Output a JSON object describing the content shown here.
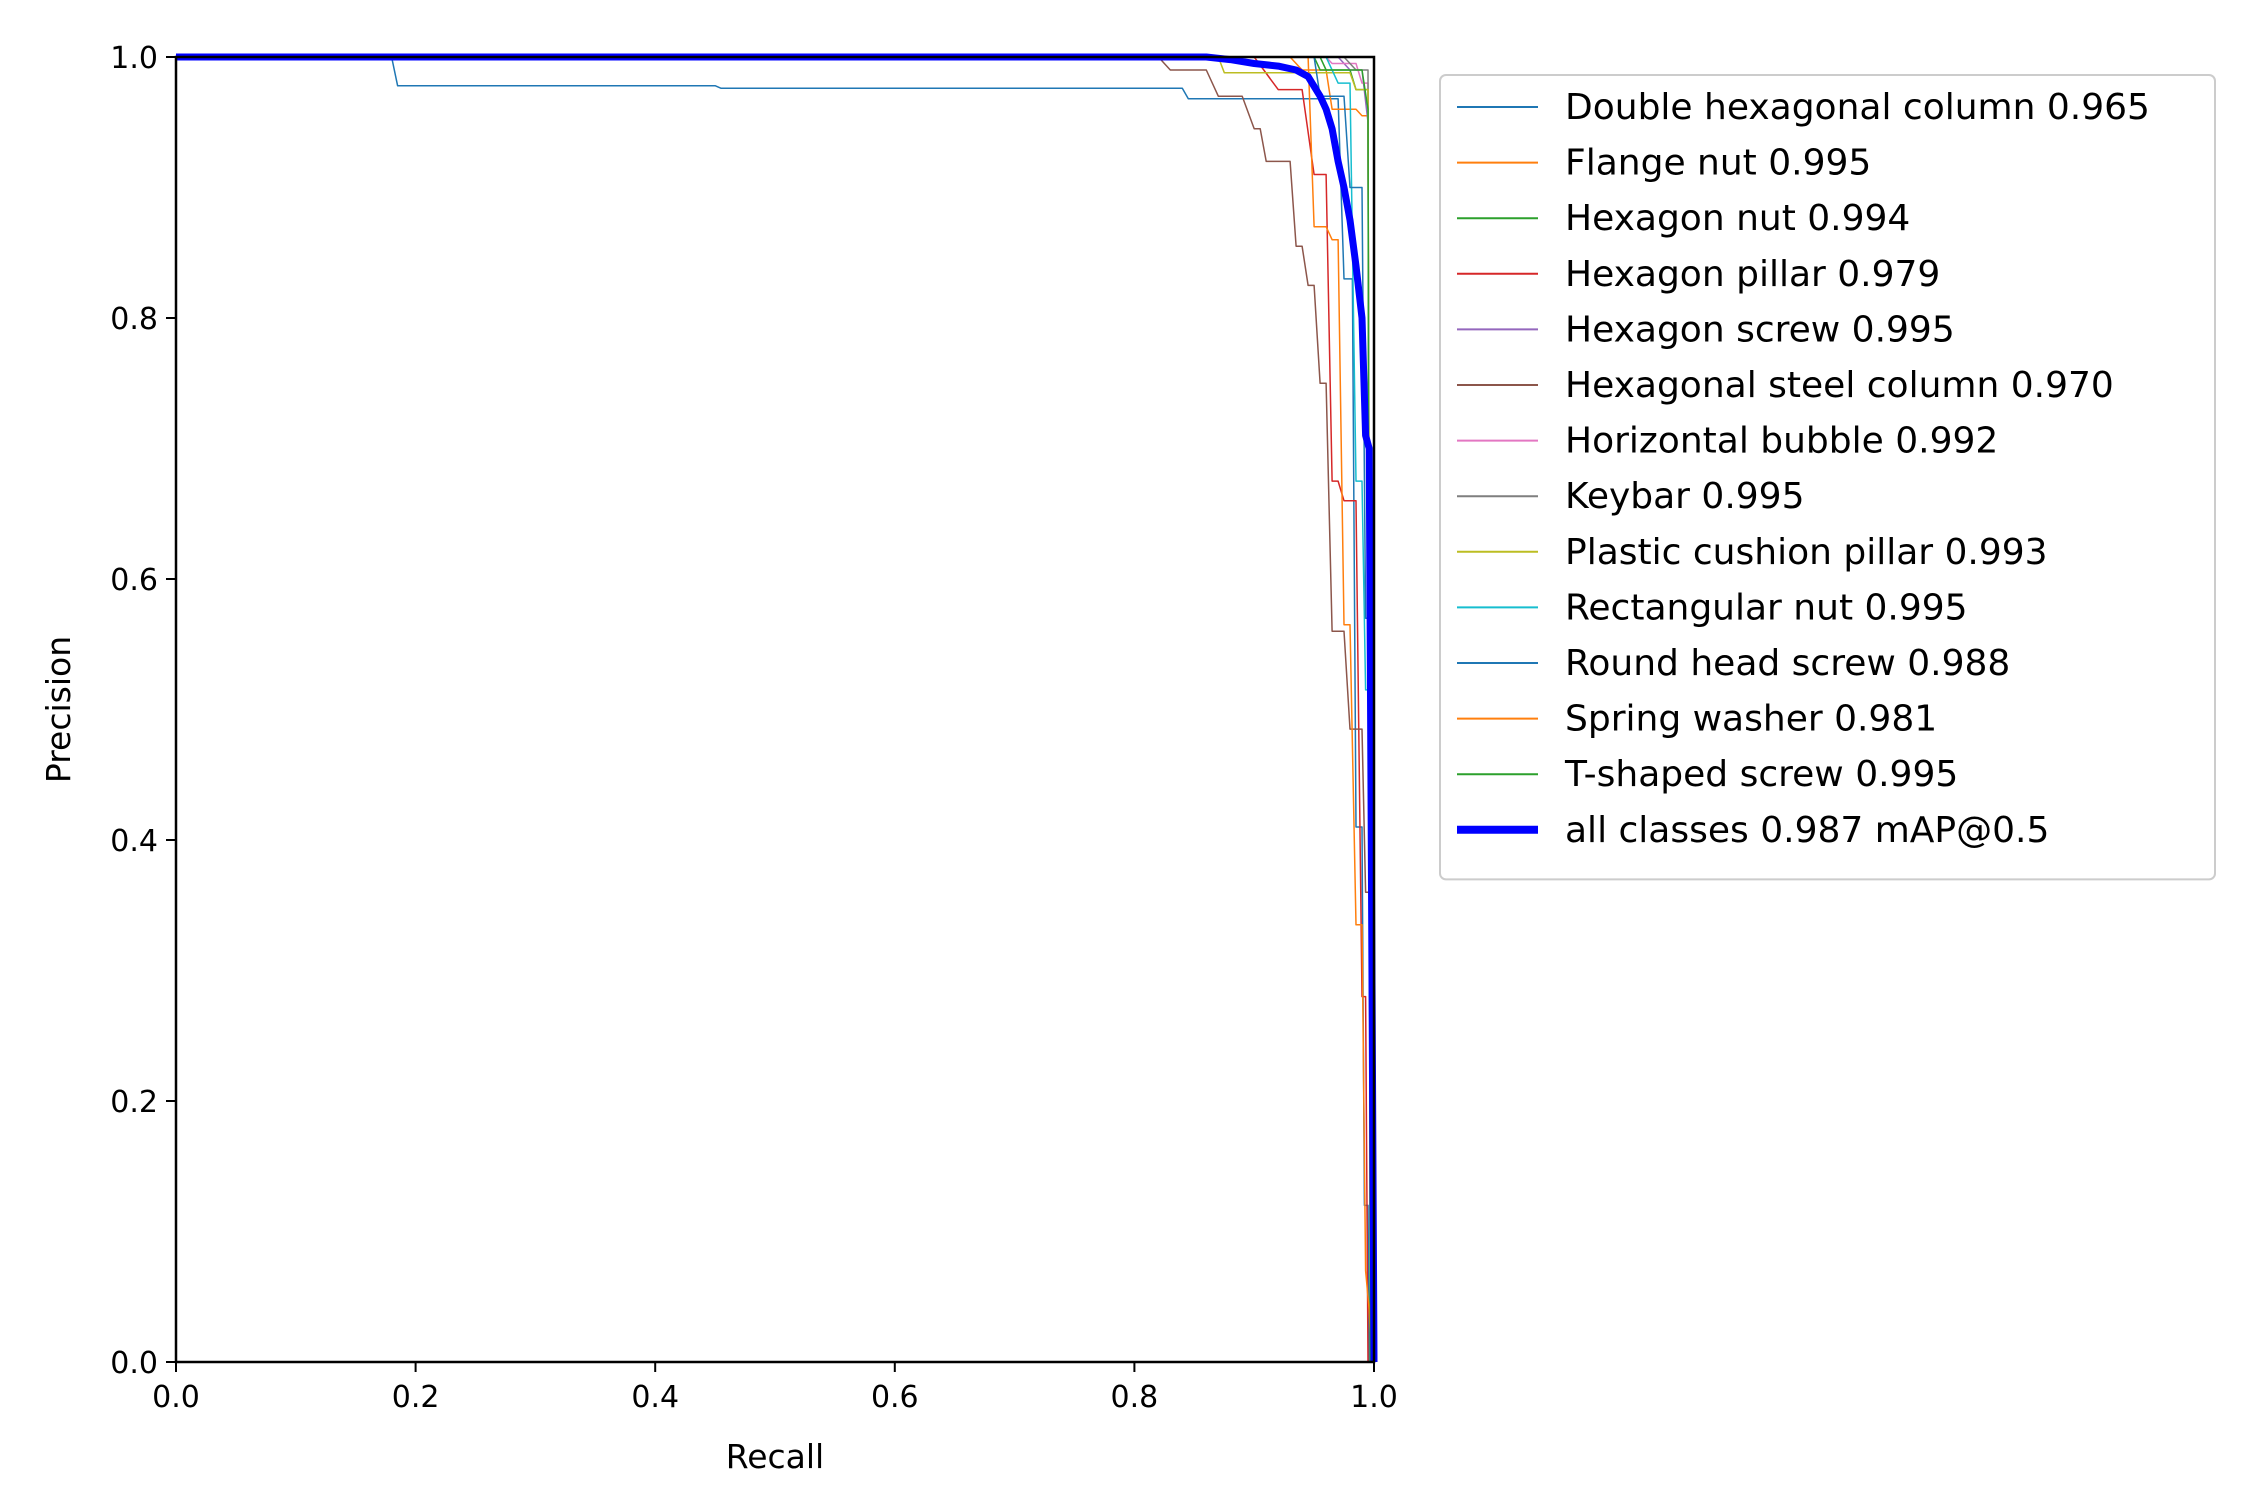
{
  "chart_data": {
    "type": "line",
    "title": "",
    "xlabel": "Recall",
    "ylabel": "Precision",
    "xlim": [
      0,
      1
    ],
    "ylim": [
      0,
      1
    ],
    "xticks": [
      "0.0",
      "0.2",
      "0.4",
      "0.6",
      "0.8",
      "1.0"
    ],
    "yticks": [
      "0.0",
      "0.2",
      "0.4",
      "0.6",
      "0.8",
      "1.0"
    ],
    "grid": false,
    "legend_position": "outside-right-top",
    "series": [
      {
        "name": "Double hexagonal column 0.965",
        "color": "#1f77b4",
        "width": 1.5,
        "points": [
          [
            0,
            1
          ],
          [
            0.18,
            1
          ],
          [
            0.185,
            0.978
          ],
          [
            0.45,
            0.978
          ],
          [
            0.455,
            0.976
          ],
          [
            0.84,
            0.976
          ],
          [
            0.845,
            0.968
          ],
          [
            0.97,
            0.968
          ],
          [
            0.975,
            0.83
          ],
          [
            0.982,
            0.83
          ],
          [
            0.985,
            0.41
          ],
          [
            0.99,
            0.41
          ],
          [
            0.992,
            0.12
          ],
          [
            0.995,
            0.12
          ],
          [
            0.996,
            0
          ]
        ]
      },
      {
        "name": "Flange nut 0.995",
        "color": "#ff7f0e",
        "width": 1.5,
        "points": [
          [
            0,
            1
          ],
          [
            0.93,
            1
          ],
          [
            0.94,
            0.99
          ],
          [
            0.96,
            0.99
          ],
          [
            0.965,
            0.96
          ],
          [
            0.985,
            0.96
          ],
          [
            0.99,
            0.955
          ],
          [
            0.995,
            0.955
          ],
          [
            0.998,
            0
          ]
        ]
      },
      {
        "name": "Hexagon nut 0.994",
        "color": "#2ca02c",
        "width": 1.5,
        "points": [
          [
            0,
            1
          ],
          [
            0.95,
            1
          ],
          [
            0.955,
            0.99
          ],
          [
            0.98,
            0.99
          ],
          [
            0.985,
            0.975
          ],
          [
            0.995,
            0.975
          ],
          [
            0.997,
            0
          ]
        ]
      },
      {
        "name": "Hexagon pillar 0.979",
        "color": "#d62728",
        "width": 1.5,
        "points": [
          [
            0,
            1
          ],
          [
            0.9,
            1
          ],
          [
            0.92,
            0.975
          ],
          [
            0.94,
            0.975
          ],
          [
            0.95,
            0.91
          ],
          [
            0.96,
            0.91
          ],
          [
            0.965,
            0.675
          ],
          [
            0.97,
            0.675
          ],
          [
            0.975,
            0.66
          ],
          [
            0.985,
            0.66
          ],
          [
            0.99,
            0.28
          ],
          [
            0.993,
            0.28
          ],
          [
            0.995,
            0
          ]
        ]
      },
      {
        "name": "Hexagon screw 0.995",
        "color": "#9467bd",
        "width": 1.5,
        "points": [
          [
            0,
            1
          ],
          [
            0.97,
            1
          ],
          [
            0.98,
            0.99
          ],
          [
            0.99,
            0.99
          ],
          [
            0.995,
            0.95
          ],
          [
            0.997,
            0
          ]
        ]
      },
      {
        "name": "Hexagonal steel column 0.970",
        "color": "#8c564b",
        "width": 1.5,
        "points": [
          [
            0,
            1
          ],
          [
            0.82,
            1
          ],
          [
            0.83,
            0.99
          ],
          [
            0.86,
            0.99
          ],
          [
            0.87,
            0.97
          ],
          [
            0.89,
            0.97
          ],
          [
            0.9,
            0.945
          ],
          [
            0.905,
            0.945
          ],
          [
            0.91,
            0.92
          ],
          [
            0.93,
            0.92
          ],
          [
            0.935,
            0.855
          ],
          [
            0.94,
            0.855
          ],
          [
            0.945,
            0.825
          ],
          [
            0.95,
            0.825
          ],
          [
            0.955,
            0.75
          ],
          [
            0.96,
            0.75
          ],
          [
            0.965,
            0.56
          ],
          [
            0.975,
            0.56
          ],
          [
            0.98,
            0.485
          ],
          [
            0.99,
            0.485
          ],
          [
            0.993,
            0.36
          ],
          [
            0.996,
            0.36
          ],
          [
            0.998,
            0
          ]
        ]
      },
      {
        "name": "Horizontal bubble 0.992",
        "color": "#e377c2",
        "width": 1.5,
        "points": [
          [
            0,
            1
          ],
          [
            0.96,
            1
          ],
          [
            0.965,
            0.995
          ],
          [
            0.985,
            0.995
          ],
          [
            0.99,
            0.98
          ],
          [
            0.995,
            0.98
          ],
          [
            0.997,
            0
          ]
        ]
      },
      {
        "name": "Keybar 0.995",
        "color": "#7f7f7f",
        "width": 1.5,
        "points": [
          [
            0,
            1
          ],
          [
            0.975,
            1
          ],
          [
            0.985,
            0.99
          ],
          [
            0.995,
            0.99
          ],
          [
            0.997,
            0
          ]
        ]
      },
      {
        "name": "Plastic cushion pillar 0.993",
        "color": "#bcbd22",
        "width": 1.5,
        "points": [
          [
            0,
            1
          ],
          [
            0.87,
            1
          ],
          [
            0.875,
            0.988
          ],
          [
            0.98,
            0.988
          ],
          [
            0.985,
            0.975
          ],
          [
            0.995,
            0.975
          ],
          [
            0.997,
            0
          ]
        ]
      },
      {
        "name": "Rectangular nut 0.995",
        "color": "#17becf",
        "width": 1.5,
        "points": [
          [
            0,
            1
          ],
          [
            0.96,
            1
          ],
          [
            0.97,
            0.98
          ],
          [
            0.98,
            0.98
          ],
          [
            0.985,
            0.675
          ],
          [
            0.99,
            0.675
          ],
          [
            0.993,
            0.515
          ],
          [
            0.996,
            0.515
          ],
          [
            0.998,
            0
          ]
        ]
      },
      {
        "name": "Round head screw 0.988",
        "color": "#1f77b4",
        "width": 1.5,
        "points": [
          [
            0,
            1
          ],
          [
            0.95,
            1
          ],
          [
            0.955,
            0.97
          ],
          [
            0.975,
            0.97
          ],
          [
            0.98,
            0.9
          ],
          [
            0.99,
            0.9
          ],
          [
            0.993,
            0.57
          ],
          [
            0.996,
            0.57
          ],
          [
            0.998,
            0
          ]
        ]
      },
      {
        "name": "Spring washer 0.981",
        "color": "#ff7f0e",
        "width": 1.5,
        "points": [
          [
            0,
            1
          ],
          [
            0.945,
            1
          ],
          [
            0.95,
            0.87
          ],
          [
            0.96,
            0.87
          ],
          [
            0.965,
            0.86
          ],
          [
            0.97,
            0.86
          ],
          [
            0.975,
            0.565
          ],
          [
            0.98,
            0.565
          ],
          [
            0.985,
            0.335
          ],
          [
            0.99,
            0.335
          ],
          [
            0.993,
            0.07
          ],
          [
            0.996,
            0.04
          ],
          [
            0.998,
            0
          ]
        ]
      },
      {
        "name": "T-shaped screw 0.995",
        "color": "#2ca02c",
        "width": 1.5,
        "points": [
          [
            0,
            1
          ],
          [
            0.955,
            1
          ],
          [
            0.96,
            0.99
          ],
          [
            0.99,
            0.99
          ],
          [
            0.995,
            0.96
          ],
          [
            0.997,
            0
          ]
        ]
      },
      {
        "name": "all classes 0.987 mAP@0.5",
        "color": "#0000ff",
        "width": 7,
        "points": [
          [
            0,
            1
          ],
          [
            0.86,
            1
          ],
          [
            0.88,
            0.998
          ],
          [
            0.9,
            0.995
          ],
          [
            0.92,
            0.993
          ],
          [
            0.935,
            0.99
          ],
          [
            0.945,
            0.985
          ],
          [
            0.955,
            0.97
          ],
          [
            0.96,
            0.96
          ],
          [
            0.965,
            0.945
          ],
          [
            0.97,
            0.92
          ],
          [
            0.975,
            0.9
          ],
          [
            0.98,
            0.875
          ],
          [
            0.985,
            0.84
          ],
          [
            0.99,
            0.8
          ],
          [
            0.993,
            0.71
          ],
          [
            0.996,
            0.7
          ],
          [
            0.998,
            0.35
          ],
          [
            1.0,
            0
          ]
        ]
      }
    ]
  }
}
